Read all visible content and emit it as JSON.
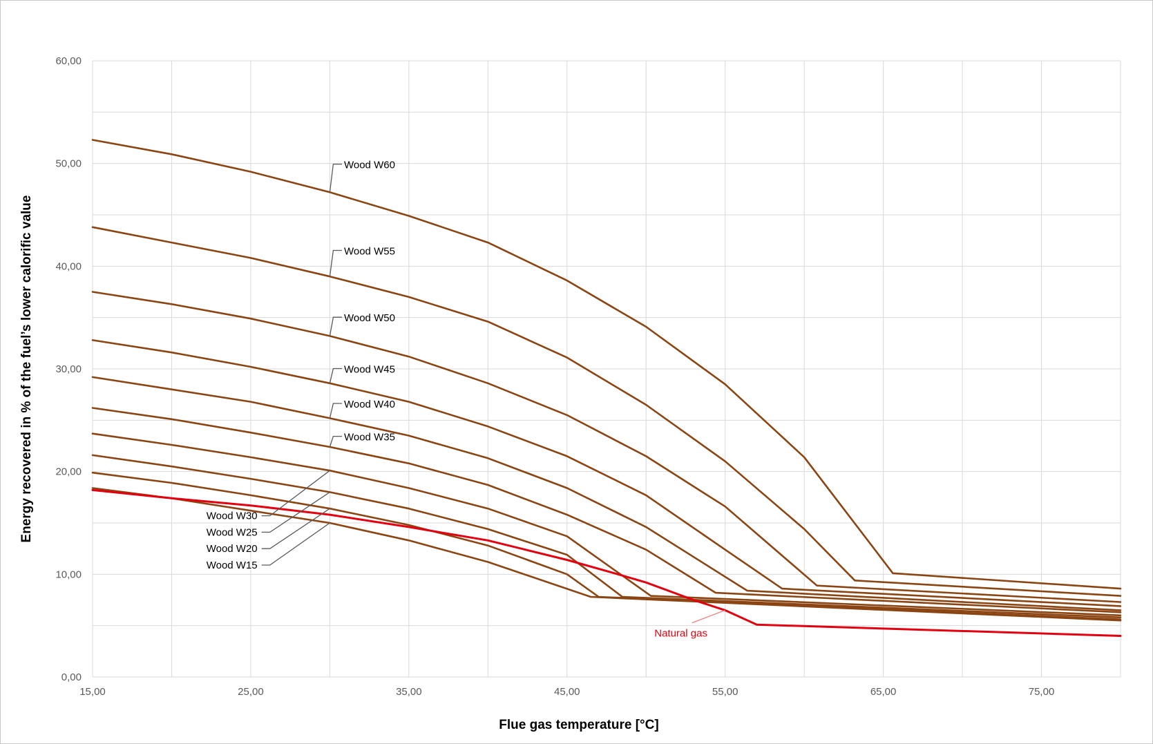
{
  "chart_data": {
    "type": "line",
    "title": "",
    "xlabel": "Flue gas temperature [°C]",
    "ylabel": "Energy recovered in % of the fuel’s lower calorific value",
    "xlim": [
      15,
      80
    ],
    "ylim": [
      0,
      60
    ],
    "x_ticks": [
      15,
      25,
      35,
      45,
      55,
      65,
      75
    ],
    "x_tick_labels": [
      "15,00",
      "25,00",
      "35,00",
      "45,00",
      "55,00",
      "65,00",
      "75,00"
    ],
    "y_ticks": [
      0,
      10,
      20,
      30,
      40,
      50,
      60
    ],
    "y_tick_labels": [
      "0,00",
      "10,00",
      "20,00",
      "30,00",
      "40,00",
      "50,00",
      "60,00"
    ],
    "grid": true,
    "colors": {
      "wood": "#8b4513",
      "gas": "#e3000f",
      "grid": "#d9d9d9",
      "leader": "#595959"
    },
    "series": [
      {
        "name": "Wood W60",
        "color": "#8b4513",
        "x": [
          15,
          20,
          25,
          30,
          35,
          40,
          45,
          50,
          55,
          60,
          65.6,
          80
        ],
        "y": [
          52.3,
          50.9,
          49.2,
          47.2,
          44.9,
          42.3,
          38.6,
          34.1,
          28.5,
          21.4,
          10.1,
          8.6
        ]
      },
      {
        "name": "Wood W55",
        "color": "#8b4513",
        "x": [
          15,
          20,
          25,
          30,
          35,
          40,
          45,
          50,
          55,
          60,
          63.2,
          80
        ],
        "y": [
          43.8,
          42.3,
          40.8,
          39.0,
          37.0,
          34.6,
          31.1,
          26.5,
          21.0,
          14.4,
          9.4,
          7.9
        ]
      },
      {
        "name": "Wood W50",
        "color": "#8b4513",
        "x": [
          15,
          20,
          25,
          30,
          35,
          40,
          45,
          50,
          55,
          60.8,
          80
        ],
        "y": [
          37.5,
          36.3,
          34.9,
          33.2,
          31.2,
          28.6,
          25.5,
          21.5,
          16.6,
          8.9,
          7.3
        ]
      },
      {
        "name": "Wood W45",
        "color": "#8b4513",
        "x": [
          15,
          20,
          25,
          30,
          35,
          40,
          45,
          50,
          55,
          58.6,
          80
        ],
        "y": [
          32.8,
          31.6,
          30.2,
          28.6,
          26.8,
          24.4,
          21.5,
          17.7,
          12.4,
          8.6,
          6.9
        ]
      },
      {
        "name": "Wood W40",
        "color": "#8b4513",
        "x": [
          15,
          20,
          25,
          30,
          35,
          40,
          45,
          50,
          56.4,
          80
        ],
        "y": [
          29.2,
          28.0,
          26.8,
          25.2,
          23.5,
          21.3,
          18.4,
          14.6,
          8.4,
          6.5
        ]
      },
      {
        "name": "Wood W35",
        "color": "#8b4513",
        "x": [
          15,
          20,
          25,
          30,
          35,
          40,
          45,
          50,
          54.4,
          80
        ],
        "y": [
          26.2,
          25.1,
          23.8,
          22.4,
          20.8,
          18.7,
          15.8,
          12.4,
          8.2,
          6.3
        ]
      },
      {
        "name": "Wood W30",
        "color": "#8b4513",
        "x": [
          15,
          20,
          25,
          30,
          35,
          40,
          45,
          50.3,
          80
        ],
        "y": [
          23.7,
          22.6,
          21.4,
          20.1,
          18.4,
          16.4,
          13.7,
          7.9,
          6.0
        ]
      },
      {
        "name": "Wood W25",
        "color": "#8b4513",
        "x": [
          15,
          20,
          25,
          30,
          35,
          40,
          45,
          48.5,
          80
        ],
        "y": [
          21.6,
          20.5,
          19.3,
          18.0,
          16.4,
          14.4,
          11.9,
          7.8,
          5.8
        ]
      },
      {
        "name": "Wood W20",
        "color": "#8b4513",
        "x": [
          15,
          20,
          25,
          30,
          35,
          40,
          45,
          47,
          80
        ],
        "y": [
          19.9,
          18.9,
          17.7,
          16.4,
          14.8,
          12.8,
          10.0,
          7.8,
          5.6
        ]
      },
      {
        "name": "Wood W15",
        "color": "#8b4513",
        "x": [
          15,
          20,
          25,
          30,
          35,
          40,
          46.5,
          80
        ],
        "y": [
          18.4,
          17.4,
          16.2,
          15.0,
          13.3,
          11.2,
          7.8,
          5.5
        ]
      },
      {
        "name": "Natural gas",
        "color": "#e3000f",
        "x": [
          15,
          20,
          25,
          30,
          35,
          40,
          45,
          48,
          50,
          53,
          55,
          57,
          80
        ],
        "y": [
          18.2,
          17.4,
          16.7,
          15.8,
          14.6,
          13.3,
          11.4,
          10.1,
          9.2,
          7.5,
          6.5,
          5.1,
          4.0
        ]
      }
    ],
    "annotations": [
      {
        "text": "Wood W60",
        "series": 0,
        "at_x": 30,
        "side": "right",
        "label_x": 30.9,
        "label_y": 49.8
      },
      {
        "text": "Wood W55",
        "series": 1,
        "at_x": 30,
        "side": "right",
        "label_x": 30.9,
        "label_y": 41.4
      },
      {
        "text": "Wood W50",
        "series": 2,
        "at_x": 30,
        "side": "right",
        "label_x": 30.9,
        "label_y": 34.9
      },
      {
        "text": "Wood W45",
        "series": 3,
        "at_x": 30,
        "side": "right",
        "label_x": 30.9,
        "label_y": 29.9
      },
      {
        "text": "Wood W40",
        "series": 4,
        "at_x": 30,
        "side": "right",
        "label_x": 30.9,
        "label_y": 26.5
      },
      {
        "text": "Wood W35",
        "series": 5,
        "at_x": 30,
        "side": "right",
        "label_x": 30.9,
        "label_y": 23.3
      },
      {
        "text": "Wood W30",
        "series": 6,
        "at_x": 30,
        "side": "left",
        "label_x": 25.6,
        "label_y": 15.7
      },
      {
        "text": "Wood W25",
        "series": 7,
        "at_x": 30,
        "side": "left",
        "label_x": 25.6,
        "label_y": 14.1
      },
      {
        "text": "Wood W20",
        "series": 8,
        "at_x": 30,
        "side": "left",
        "label_x": 25.6,
        "label_y": 12.5
      },
      {
        "text": "Wood W15",
        "series": 9,
        "at_x": 30,
        "side": "left",
        "label_x": 25.6,
        "label_y": 10.9
      },
      {
        "text": "Natural gas",
        "series": 10,
        "at_x": 55,
        "side": "below",
        "label_x": 52.2,
        "label_y": 4.2
      }
    ]
  }
}
